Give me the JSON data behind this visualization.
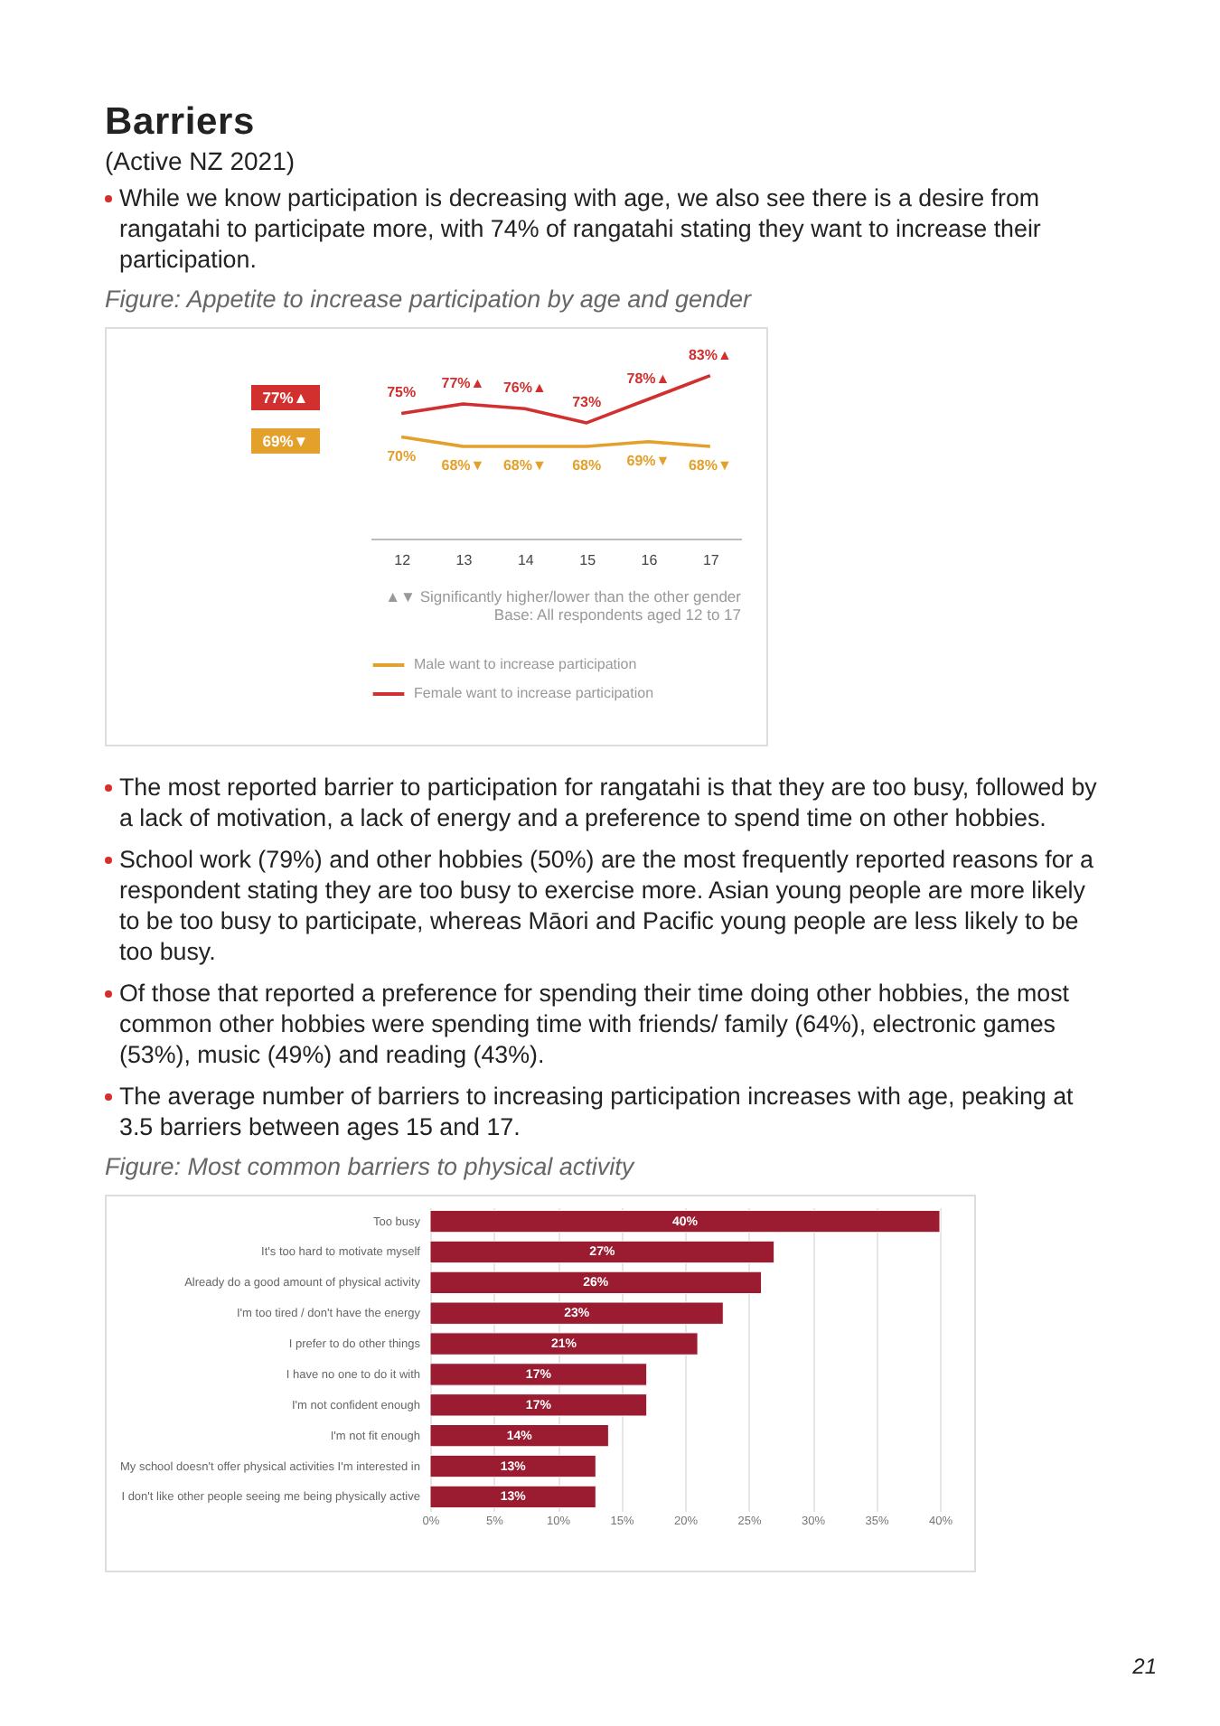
{
  "chart_data": [
    {
      "type": "other",
      "title": "Barriers",
      "subtitle": "(Active NZ 2021)",
      "annotations": [
        "While we know participation is decreasing with age, we also see there is a desire from rangatahi to participate more, with 74% of rangatahi stating they want to increase their participation."
      ]
    },
    {
      "type": "line",
      "title": "Figure: Appetite to increase participation by age and gender",
      "categories": [
        "12",
        "13",
        "14",
        "15",
        "16",
        "17"
      ],
      "series": [
        {
          "name": "Male want to increase participation",
          "color": "#e3a02a",
          "values": [
            70,
            68,
            68,
            68,
            69,
            68
          ],
          "value_labels": [
            "70%",
            "68%▼",
            "68%▼",
            "68%",
            "69%▼",
            "68%▼"
          ]
        },
        {
          "name": "Female want to increase participation",
          "color": "#d22f2f",
          "values": [
            75,
            77,
            76,
            73,
            78,
            83
          ],
          "value_labels": [
            "75%",
            "77%▲",
            "76%▲",
            "73%",
            "78%▲",
            "83%▲"
          ]
        }
      ],
      "annotations": [
        "77%▲",
        "69%▼",
        "▲▼ Significantly higher/lower than the other gender",
        "Base: All respondents aged 12 to 17"
      ],
      "legend": "bottom",
      "tick_labels": "x",
      "marker": "none",
      "line_style": "solid"
    },
    {
      "type": "other",
      "annotations": [
        "The most reported barrier to participation for rangatahi is that they are too busy, followed by a lack of motivation, a lack of energy and a preference to spend time on other hobbies.",
        "School work (79%) and other hobbies (50%) are the most frequently reported reasons for a respondent stating they are too busy to exercise more. Asian young people are more likely to be too busy to participate, whereas Māori and Pacific young people are less likely to be too busy.",
        "Of those that reported a preference for spending their time doing other hobbies, the most common other hobbies were spending time with friends/ family (64%), electronic games (53%), music (49%) and reading (43%).",
        "The average number of barriers to increasing participation increases with age, peaking at 3.5 barriers between ages 15 and 17."
      ]
    },
    {
      "type": "bar",
      "orientation": "horizontal",
      "title": "Figure: Most common barriers to physical activity",
      "categories": [
        "Too busy",
        "It's too hard to motivate myself",
        "Already do a good amount of physical activity",
        "I'm too tired / don't have the energy",
        "I prefer to do other things",
        "I have no one to do it with",
        "I'm not confident enough",
        "I'm not fit enough",
        "My school doesn't offer physical activities I'm interested in",
        "I don't like other people seeing me being physically active"
      ],
      "values": [
        40,
        27,
        26,
        23,
        21,
        17,
        17,
        14,
        13,
        13
      ],
      "value_labels": [
        "40%",
        "27%",
        "26%",
        "23%",
        "21%",
        "17%",
        "17%",
        "14%",
        "13%",
        "13%"
      ],
      "color": "#9b1b30",
      "xlim": [
        0,
        40
      ],
      "xticks": [
        {
          "value": 0,
          "label": "0%"
        },
        {
          "value": 5,
          "label": "5%"
        },
        {
          "value": 10,
          "label": "10%"
        },
        {
          "value": 15,
          "label": "15%"
        },
        {
          "value": 20,
          "label": "20%"
        },
        {
          "value": 25,
          "label": "25%"
        },
        {
          "value": 30,
          "label": "30%"
        },
        {
          "value": 35,
          "label": "35%"
        },
        {
          "value": 40,
          "label": "40%"
        }
      ],
      "grid": "x"
    },
    {
      "type": "other",
      "annotations": [
        "21"
      ]
    }
  ]
}
